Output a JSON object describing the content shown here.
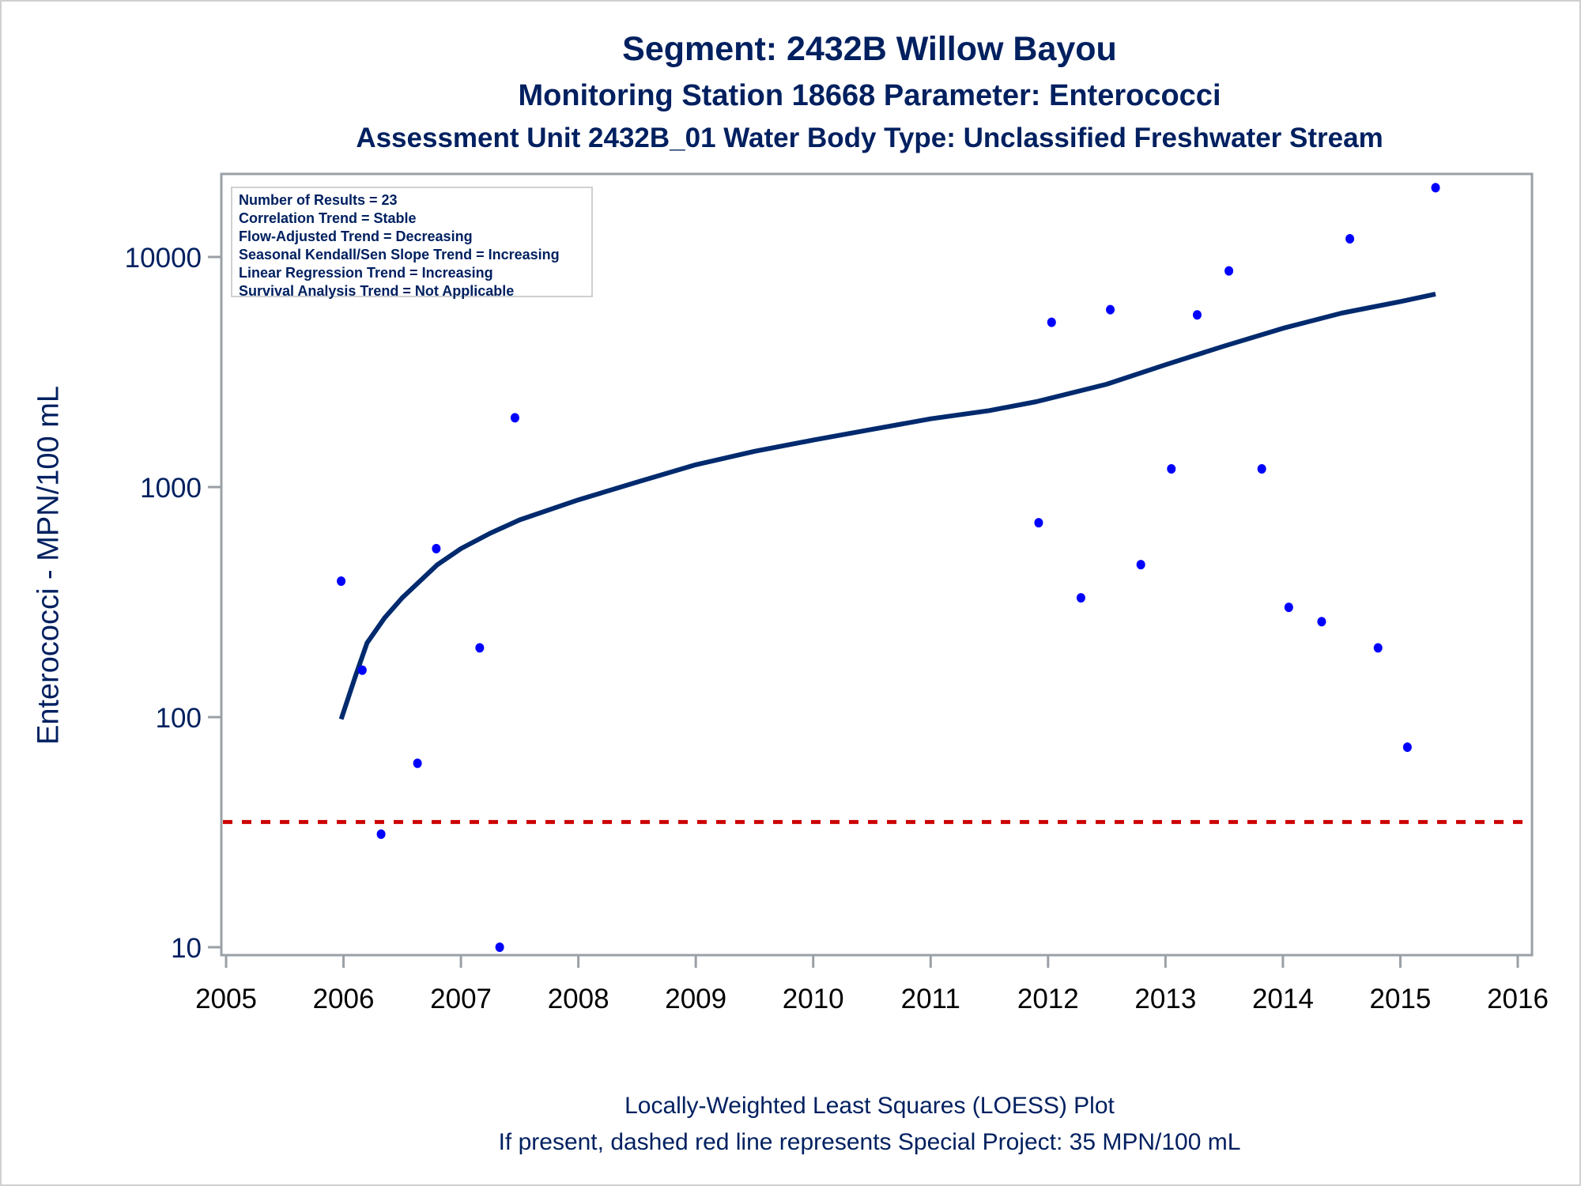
{
  "title": "Segment: 2432B  Willow Bayou",
  "subtitle1": "Monitoring Station 18668 Parameter: Enterococci",
  "subtitle2": "Assessment Unit 2432B_01   Water Body Type: Unclassified Freshwater Stream",
  "footnote1": "Locally-Weighted Least Squares (LOESS) Plot",
  "footnote2": "If present, dashed red line represents Special Project: 35 MPN/100 mL",
  "stats_box": [
    "Number of Results = 23",
    "Correlation Trend = Stable",
    "Flow-Adjusted Trend = Decreasing",
    "Seasonal Kendall/Sen Slope Trend = Increasing",
    "Linear Regression Trend = Increasing",
    "Survival Analysis Trend = Not Applicable"
  ],
  "colors": {
    "text": "#002060",
    "points": "#0000ff",
    "loess": "#002a6e",
    "reference_line": "#cc0000",
    "axis": "#9aa0a6"
  },
  "chart_data": {
    "type": "scatter",
    "title": "Segment: 2432B  Willow Bayou",
    "xlabel": "",
    "ylabel": "Enterococci - MPN/100 mL",
    "xlim": [
      2005,
      2016
    ],
    "ylim": [
      10,
      20000
    ],
    "yscale": "log",
    "x_ticks": [
      "2005",
      "2006",
      "2007",
      "2008",
      "2009",
      "2010",
      "2011",
      "2012",
      "2013",
      "2014",
      "2015",
      "2016"
    ],
    "y_ticks": [
      "10",
      "100",
      "1000",
      "10000"
    ],
    "grid": false,
    "legend": "top-left",
    "series": [
      {
        "name": "Observed",
        "type": "scatter",
        "points": [
          {
            "x": 2005.98,
            "y": 390
          },
          {
            "x": 2006.16,
            "y": 160
          },
          {
            "x": 2006.32,
            "y": 31
          },
          {
            "x": 2006.63,
            "y": 63
          },
          {
            "x": 2006.79,
            "y": 540
          },
          {
            "x": 2007.16,
            "y": 200
          },
          {
            "x": 2007.33,
            "y": 10
          },
          {
            "x": 2007.46,
            "y": 2000
          },
          {
            "x": 2011.92,
            "y": 700
          },
          {
            "x": 2012.03,
            "y": 5200
          },
          {
            "x": 2012.28,
            "y": 330
          },
          {
            "x": 2012.53,
            "y": 5900
          },
          {
            "x": 2012.79,
            "y": 460
          },
          {
            "x": 2013.05,
            "y": 1200
          },
          {
            "x": 2013.27,
            "y": 5600
          },
          {
            "x": 2013.54,
            "y": 8700
          },
          {
            "x": 2013.82,
            "y": 1200
          },
          {
            "x": 2014.05,
            "y": 300
          },
          {
            "x": 2014.33,
            "y": 260
          },
          {
            "x": 2014.57,
            "y": 12000
          },
          {
            "x": 2014.81,
            "y": 200
          },
          {
            "x": 2015.06,
            "y": 74
          },
          {
            "x": 2015.3,
            "y": 20000
          }
        ]
      },
      {
        "name": "LOESS",
        "type": "line",
        "points": [
          {
            "x": 2005.98,
            "y": 98
          },
          {
            "x": 2006.1,
            "y": 150
          },
          {
            "x": 2006.2,
            "y": 210
          },
          {
            "x": 2006.35,
            "y": 270
          },
          {
            "x": 2006.5,
            "y": 330
          },
          {
            "x": 2006.8,
            "y": 460
          },
          {
            "x": 2007.0,
            "y": 540
          },
          {
            "x": 2007.25,
            "y": 630
          },
          {
            "x": 2007.5,
            "y": 720
          },
          {
            "x": 2008.0,
            "y": 880
          },
          {
            "x": 2008.5,
            "y": 1050
          },
          {
            "x": 2009.0,
            "y": 1250
          },
          {
            "x": 2009.5,
            "y": 1430
          },
          {
            "x": 2010.0,
            "y": 1600
          },
          {
            "x": 2010.5,
            "y": 1780
          },
          {
            "x": 2011.0,
            "y": 1980
          },
          {
            "x": 2011.5,
            "y": 2150
          },
          {
            "x": 2011.9,
            "y": 2350
          },
          {
            "x": 2012.5,
            "y": 2800
          },
          {
            "x": 2013.0,
            "y": 3400
          },
          {
            "x": 2013.5,
            "y": 4100
          },
          {
            "x": 2014.0,
            "y": 4900
          },
          {
            "x": 2014.5,
            "y": 5700
          },
          {
            "x": 2015.0,
            "y": 6400
          },
          {
            "x": 2015.3,
            "y": 6900
          }
        ]
      }
    ],
    "reference_line": {
      "name": "Special Project",
      "y": 35,
      "style": "dashed"
    }
  }
}
